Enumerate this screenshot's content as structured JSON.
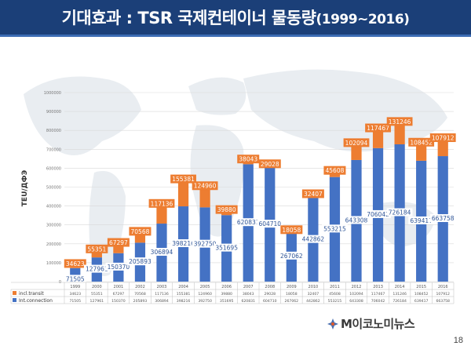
{
  "slide": {
    "title_main": "기대효과 : TSR 국제컨테이너 물동량",
    "title_range": "(1999~2016)",
    "page_number": "18",
    "logo_text": "M이코노미뉴스"
  },
  "colors": {
    "title_bg": "#1b3f78",
    "transit": "#ed7d31",
    "connection": "#4472c4"
  },
  "chart_data": {
    "type": "bar",
    "stacked": true,
    "categories": [
      "1999",
      "2000",
      "2001",
      "2002",
      "2003",
      "2004",
      "2005",
      "2006",
      "2007",
      "2008",
      "2009",
      "2010",
      "2011",
      "2012",
      "2013",
      "2014",
      "2015",
      "2016"
    ],
    "series": [
      {
        "name": "Int.connection",
        "color": "#4472c4",
        "values": [
          71505,
          127961,
          150370,
          205893,
          306894,
          398216,
          392750,
          351695,
          620831,
          604710,
          267062,
          442862,
          553215,
          643308,
          706042,
          726184,
          639417,
          663758
        ]
      },
      {
        "name": "incl.transit",
        "color": "#ed7d31",
        "values": [
          34623,
          55351,
          67297,
          70568,
          117136,
          155381,
          124960,
          39880,
          38043,
          29028,
          18058,
          32407,
          45608,
          102094,
          117467,
          131246,
          108452,
          107912
        ]
      }
    ],
    "table_rows": [
      {
        "label": "incl.transit",
        "values": [
          "34623",
          "55351",
          "67297",
          "70568",
          "117136",
          "155381",
          "124960",
          "39880",
          "38043",
          "29028",
          "18058",
          "32407",
          "45608",
          "102094",
          "117467",
          "131246",
          "108452",
          "107912"
        ]
      },
      {
        "label": "Int.connection",
        "values": [
          "71505",
          "127961",
          "150370",
          "205893",
          "306894",
          "398216",
          "392750",
          "351695",
          "620831",
          "604710",
          "267062",
          "442862",
          "553215",
          "643308",
          "706042",
          "726184",
          "639417",
          "663758"
        ]
      }
    ],
    "yticks": [
      "0",
      "100000",
      "200000",
      "300000",
      "400000",
      "500000",
      "600000",
      "700000",
      "800000",
      "900000",
      "1000000"
    ],
    "ylim": [
      0,
      1000000
    ],
    "ylabel": "TEU/ДФЭ",
    "grid": true
  }
}
